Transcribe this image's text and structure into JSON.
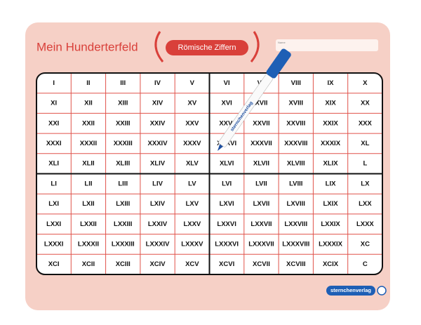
{
  "header": {
    "title": "Mein Hunderterfeld",
    "badge": "Römische Ziffern",
    "name_label": "Name"
  },
  "table": {
    "rows": [
      [
        "I",
        "II",
        "III",
        "IV",
        "V",
        "VI",
        "VII",
        "VIII",
        "IX",
        "X"
      ],
      [
        "XI",
        "XII",
        "XIII",
        "XIV",
        "XV",
        "XVI",
        "XVII",
        "XVIII",
        "XIX",
        "XX"
      ],
      [
        "XXI",
        "XXII",
        "XXIII",
        "XXIV",
        "XXV",
        "XXVI",
        "XXVII",
        "XXVIII",
        "XXIX",
        "XXX"
      ],
      [
        "XXXI",
        "XXXII",
        "XXXIII",
        "XXXIV",
        "XXXV",
        "XXXVI",
        "XXXVII",
        "XXXVIII",
        "XXXIX",
        "XL"
      ],
      [
        "XLI",
        "XLII",
        "XLIII",
        "XLIV",
        "XLV",
        "XLVI",
        "XLVII",
        "XLVIII",
        "XLIX",
        "L"
      ],
      [
        "LI",
        "LII",
        "LIII",
        "LIV",
        "LV",
        "LVI",
        "LVII",
        "LVIII",
        "LIX",
        "LX"
      ],
      [
        "LXI",
        "LXII",
        "LXIII",
        "LXIV",
        "LXV",
        "LXVI",
        "LXVII",
        "LXVIII",
        "LXIX",
        "LXX"
      ],
      [
        "LXXI",
        "LXXII",
        "LXXIII",
        "LXXIV",
        "LXXV",
        "LXXVI",
        "LXXVII",
        "LXXVIII",
        "LXXIX",
        "LXXX"
      ],
      [
        "LXXXI",
        "LXXXII",
        "LXXXIII",
        "LXXXIV",
        "LXXXV",
        "LXXXVI",
        "LXXXVII",
        "LXXXVIII",
        "LXXXIX",
        "XC"
      ],
      [
        "XCI",
        "XCII",
        "XCIII",
        "XCIV",
        "XCV",
        "XCVI",
        "XCVII",
        "XCVIII",
        "XCIX",
        "C"
      ]
    ]
  },
  "pen": {
    "label": "sternchenverlag"
  },
  "footer": {
    "brand": "sternchenverlag"
  }
}
